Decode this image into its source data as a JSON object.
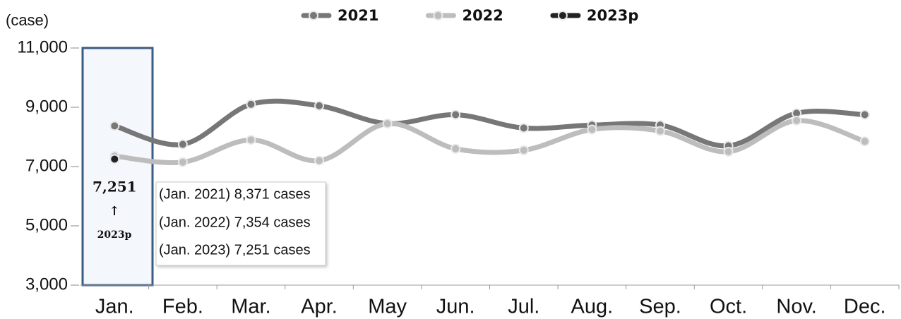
{
  "chart_data": {
    "type": "line",
    "y_label": "(case)",
    "categories": [
      "Jan.",
      "Feb.",
      "Mar.",
      "Apr.",
      "May",
      "Jun.",
      "Jul.",
      "Aug.",
      "Sep.",
      "Oct.",
      "Nov.",
      "Dec."
    ],
    "series": [
      {
        "name": "2021",
        "color": "#777777",
        "values": [
          8371,
          7750,
          9100,
          9050,
          8450,
          8750,
          8300,
          8400,
          8400,
          7700,
          8800,
          8750
        ]
      },
      {
        "name": "2022",
        "color": "#bdbdbd",
        "values": [
          7354,
          7150,
          7900,
          7200,
          8450,
          7600,
          7550,
          8250,
          8200,
          7500,
          8550,
          7850
        ]
      },
      {
        "name": "2023p",
        "color": "#222222",
        "values": [
          7251,
          null,
          null,
          null,
          null,
          null,
          null,
          null,
          null,
          null,
          null,
          null
        ],
        "value_labels": [
          "7,251",
          null,
          null,
          null,
          null,
          null,
          null,
          null,
          null,
          null,
          null,
          null
        ]
      }
    ],
    "ylim": [
      3000,
      11000
    ],
    "yticks": [
      {
        "value": 3000,
        "label": "3,000"
      },
      {
        "value": 5000,
        "label": "5,000"
      },
      {
        "value": 7000,
        "label": "7,000"
      },
      {
        "value": 9000,
        "label": "9,000"
      },
      {
        "value": 11000,
        "label": "11,000"
      }
    ],
    "legend": "top",
    "annotations": [
      "↑",
      "2023p"
    ],
    "callout": [
      "(Jan. 2021) 8,371 cases",
      "(Jan. 2022) 7,354 cases",
      "(Jan. 2023) 7,251 cases"
    ]
  }
}
